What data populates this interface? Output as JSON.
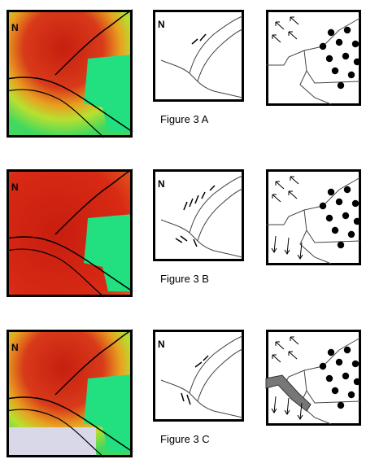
{
  "figures": [
    {
      "caption": "Figure 3 A",
      "map_north": "N",
      "sketch_north": "N"
    },
    {
      "caption": "Figure 3 B",
      "map_north": "N",
      "sketch_north": "N"
    },
    {
      "caption": "Figure 3 C",
      "map_north": "N",
      "sketch_north": "N"
    }
  ]
}
